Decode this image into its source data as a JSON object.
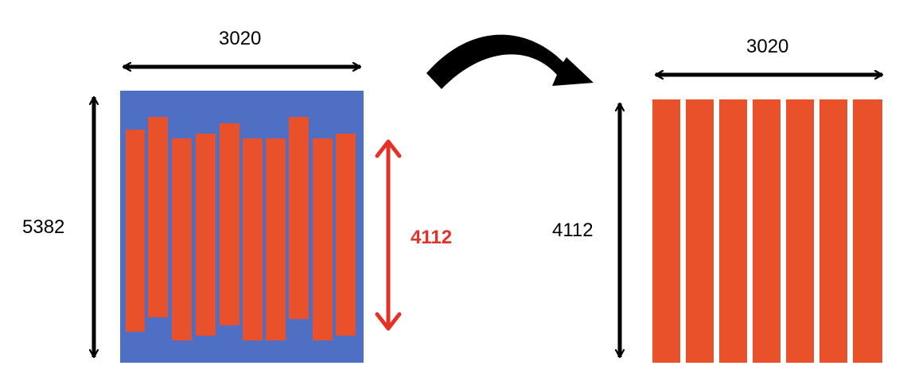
{
  "before": {
    "width_label": "3020",
    "height_label": "5382",
    "strip_height_label": "4112",
    "strip_count": 10
  },
  "after": {
    "width_label": "3020",
    "height_label": "4112",
    "strip_count": 7
  },
  "colors": {
    "background_block": "#4f6fc4",
    "strip": "#e9512a",
    "arrow": "#000000",
    "highlight": "#e53228"
  }
}
